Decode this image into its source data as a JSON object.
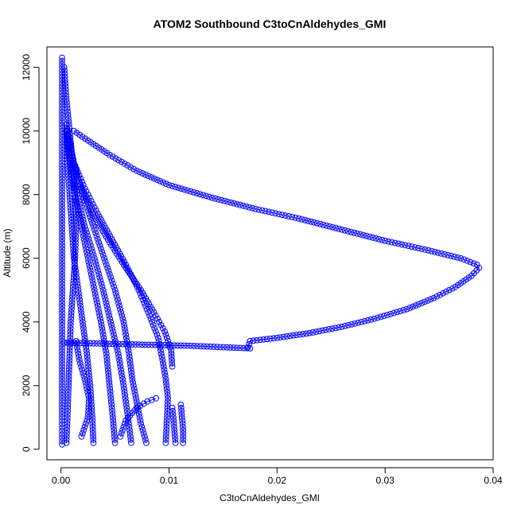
{
  "chart_data": {
    "type": "scatter",
    "title": "ATOM2 Southbound C3toCnAldehydes_GMI",
    "xlabel": "C3toCnAldehydes_GMI",
    "ylabel": "Altitude (m)",
    "xlim": [
      -0.0013,
      0.04
    ],
    "ylim": [
      -330,
      12640
    ],
    "xticks": [
      0.0,
      0.01,
      0.02,
      0.03,
      0.04
    ],
    "xtick_labels": [
      "0.00",
      "0.01",
      "0.02",
      "0.03",
      "0.04"
    ],
    "yticks": [
      0,
      2000,
      4000,
      6000,
      8000,
      10000,
      12000
    ],
    "ytick_labels": [
      "0",
      "2000",
      "4000",
      "6000",
      "8000",
      "10000",
      "12000"
    ],
    "grid": false,
    "legend": "none",
    "marker": "open-circle",
    "color": "#0000ff",
    "series": [
      {
        "points": [
          [
            0.0001,
            150
          ],
          [
            0.0001,
            1000
          ],
          [
            0.0001,
            2000
          ],
          [
            0.0001,
            3000
          ],
          [
            0.0001,
            4000
          ],
          [
            0.0001,
            5000
          ],
          [
            0.0001,
            6000
          ],
          [
            0.0001,
            7000
          ],
          [
            0.0001,
            8000
          ],
          [
            0.0001,
            9000
          ],
          [
            0.0001,
            10000
          ],
          [
            0.0001,
            11000
          ],
          [
            0.0001,
            12300
          ]
        ]
      },
      {
        "points": [
          [
            0.0005,
            200
          ],
          [
            0.0006,
            1000
          ],
          [
            0.0007,
            2000
          ],
          [
            0.0008,
            3000
          ],
          [
            0.0009,
            4000
          ],
          [
            0.0011,
            5000
          ],
          [
            0.0013,
            6000
          ],
          [
            0.0014,
            7000
          ],
          [
            0.0013,
            8000
          ],
          [
            0.0011,
            9000
          ],
          [
            0.0008,
            10000
          ],
          [
            0.0005,
            11000
          ],
          [
            0.0003,
            12000
          ]
        ]
      },
      {
        "points": [
          [
            0.003,
            200
          ],
          [
            0.0029,
            1000
          ],
          [
            0.0027,
            2000
          ],
          [
            0.0024,
            3000
          ],
          [
            0.002,
            4000
          ],
          [
            0.0016,
            5000
          ],
          [
            0.0012,
            6000
          ],
          [
            0.001,
            7000
          ],
          [
            0.0008,
            8000
          ],
          [
            0.0006,
            9000
          ],
          [
            0.0005,
            10000
          ]
        ]
      },
      {
        "points": [
          [
            0.005,
            200
          ],
          [
            0.0048,
            1000
          ],
          [
            0.0045,
            2000
          ],
          [
            0.0042,
            3000
          ],
          [
            0.0037,
            4000
          ],
          [
            0.0031,
            5000
          ],
          [
            0.0025,
            6000
          ],
          [
            0.0019,
            7000
          ],
          [
            0.0013,
            8000
          ],
          [
            0.0008,
            9000
          ],
          [
            0.0005,
            10000
          ]
        ]
      },
      {
        "points": [
          [
            0.0065,
            200
          ],
          [
            0.0062,
            1000
          ],
          [
            0.0058,
            2000
          ],
          [
            0.0053,
            3000
          ],
          [
            0.0046,
            4000
          ],
          [
            0.0039,
            5000
          ],
          [
            0.0031,
            6000
          ],
          [
            0.0022,
            7000
          ],
          [
            0.0015,
            8000
          ],
          [
            0.0009,
            9000
          ],
          [
            0.0005,
            10200
          ]
        ]
      },
      {
        "points": [
          [
            0.0079,
            200
          ],
          [
            0.0074,
            800
          ],
          [
            0.007,
            1500
          ],
          [
            0.0066,
            2200
          ],
          [
            0.0063,
            3000
          ],
          [
            0.0058,
            4000
          ],
          [
            0.005,
            5000
          ],
          [
            0.004,
            6000
          ],
          [
            0.003,
            7000
          ],
          [
            0.002,
            8000
          ],
          [
            0.0012,
            9000
          ],
          [
            0.0006,
            10000
          ]
        ]
      },
      {
        "points": [
          [
            0.0097,
            200
          ],
          [
            0.0098,
            900
          ],
          [
            0.0099,
            1600
          ],
          [
            0.0097,
            2200
          ],
          [
            0.0094,
            2800
          ],
          [
            0.009,
            3500
          ],
          [
            0.0082,
            4200
          ],
          [
            0.0072,
            5000
          ],
          [
            0.006,
            5800
          ],
          [
            0.0047,
            6600
          ],
          [
            0.0034,
            7400
          ],
          [
            0.0022,
            8200
          ],
          [
            0.0012,
            9000
          ],
          [
            0.0006,
            10000
          ]
        ]
      },
      {
        "points": [
          [
            0.0103,
            2600
          ],
          [
            0.0102,
            3100
          ],
          [
            0.0096,
            3700
          ],
          [
            0.0086,
            4300
          ],
          [
            0.0074,
            5000
          ],
          [
            0.006,
            5700
          ],
          [
            0.0045,
            6500
          ],
          [
            0.0031,
            7300
          ],
          [
            0.002,
            8100
          ],
          [
            0.0011,
            9000
          ],
          [
            0.0006,
            10000
          ]
        ]
      },
      {
        "points": [
          [
            0.0113,
            200
          ],
          [
            0.0113,
            600
          ],
          [
            0.0112,
            1000
          ],
          [
            0.0111,
            1400
          ]
        ]
      },
      {
        "points": [
          [
            0.0106,
            200
          ],
          [
            0.0105,
            600
          ],
          [
            0.0104,
            1000
          ],
          [
            0.0103,
            1300
          ]
        ]
      },
      {
        "points": [
          [
            0.0055,
            400
          ],
          [
            0.006,
            900
          ],
          [
            0.007,
            1300
          ],
          [
            0.008,
            1500
          ],
          [
            0.0088,
            1600
          ]
        ]
      },
      {
        "points": [
          [
            0.0019,
            400
          ],
          [
            0.0025,
            1000
          ],
          [
            0.0026,
            1600
          ],
          [
            0.0022,
            2200
          ],
          [
            0.0017,
            2800
          ],
          [
            0.0014,
            3400
          ]
        ]
      },
      {
        "points": [
          [
            0.0003,
            3350
          ],
          [
            0.006,
            3300
          ],
          [
            0.012,
            3250
          ],
          [
            0.0175,
            3170
          ]
        ]
      },
      {
        "points": [
          [
            0.0173,
            3200
          ],
          [
            0.0174,
            3300
          ],
          [
            0.0175,
            3400
          ],
          [
            0.02,
            3500
          ],
          [
            0.023,
            3650
          ],
          [
            0.026,
            3850
          ],
          [
            0.029,
            4100
          ],
          [
            0.032,
            4400
          ],
          [
            0.0345,
            4750
          ],
          [
            0.0365,
            5100
          ],
          [
            0.038,
            5450
          ],
          [
            0.0387,
            5700
          ],
          [
            0.0385,
            5800
          ],
          [
            0.037,
            6000
          ],
          [
            0.034,
            6250
          ],
          [
            0.03,
            6550
          ],
          [
            0.026,
            6900
          ],
          [
            0.022,
            7250
          ],
          [
            0.018,
            7550
          ],
          [
            0.014,
            7900
          ],
          [
            0.01,
            8300
          ],
          [
            0.007,
            8750
          ],
          [
            0.0045,
            9250
          ],
          [
            0.0025,
            9700
          ],
          [
            0.0012,
            10000
          ]
        ]
      }
    ]
  }
}
